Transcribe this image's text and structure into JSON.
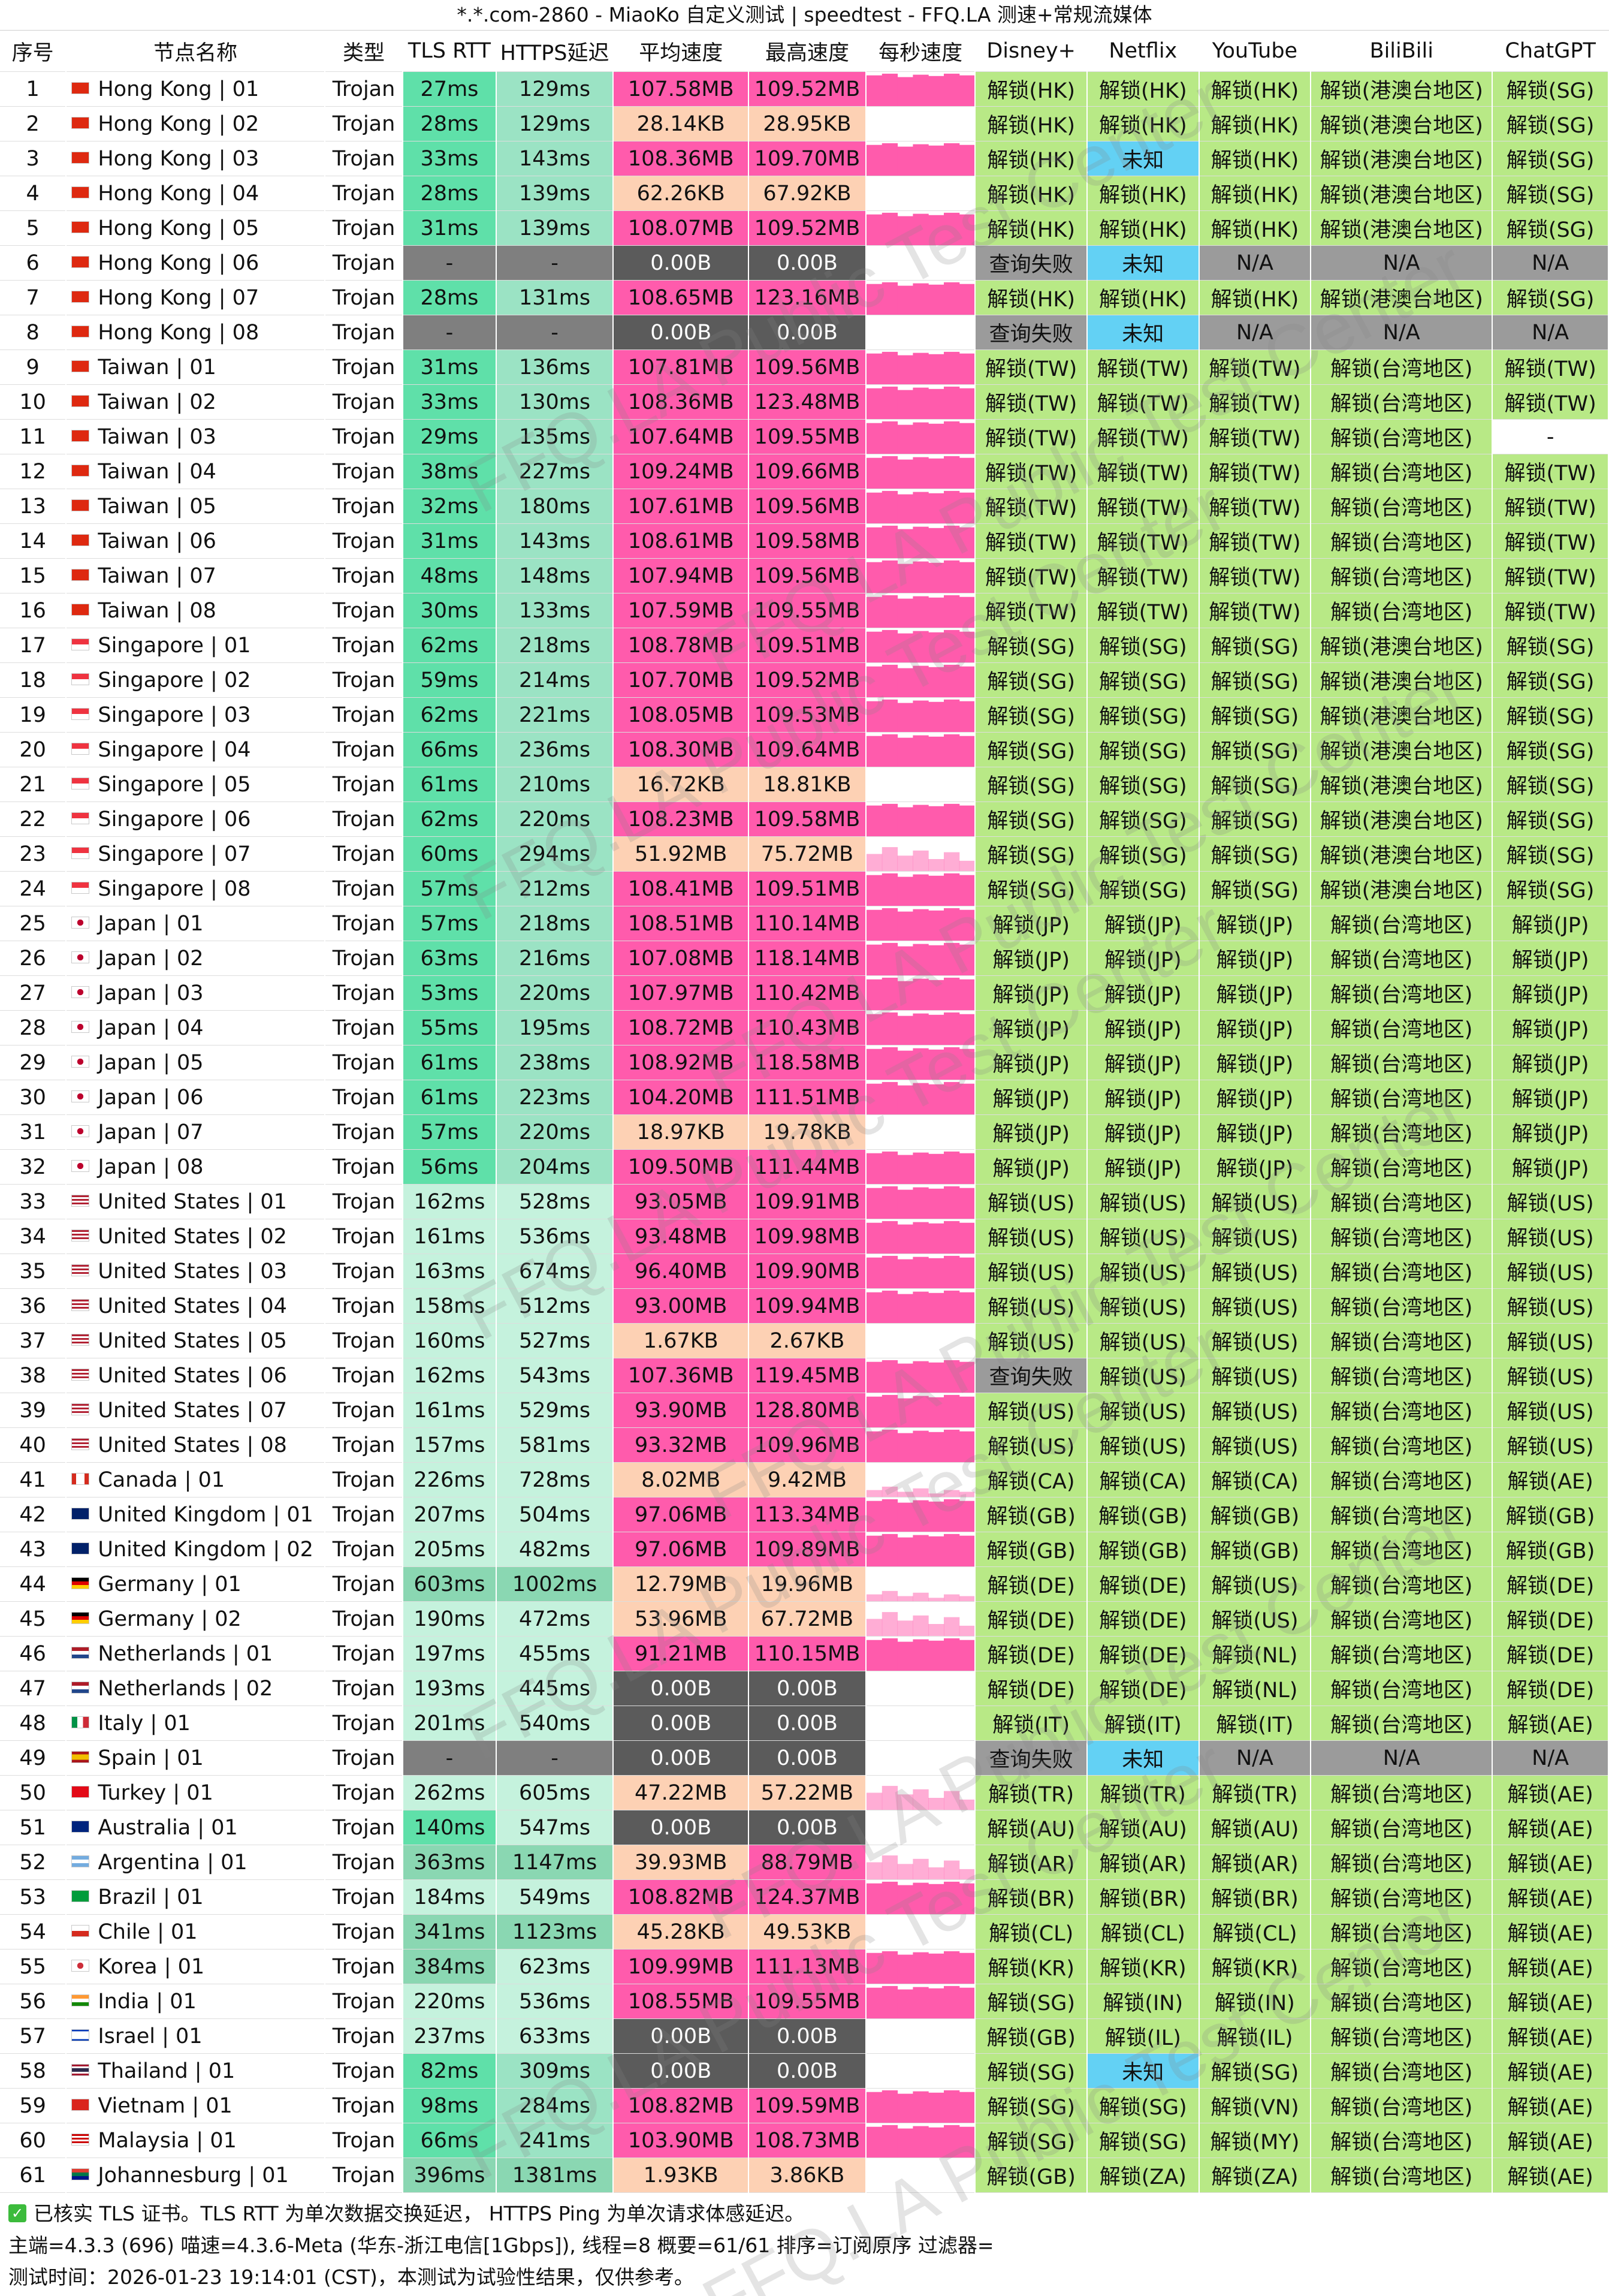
{
  "title": "*.*.com-2860 - MiaoKo 自定义测试 | speedtest - FFQ.LA 测速+常规流媒体",
  "columns": [
    "序号",
    "节点名称",
    "类型",
    "TLS RTT",
    "HTTPS延迟",
    "平均速度",
    "最高速度",
    "每秒速度",
    "Disney+",
    "Netflix",
    "YouTube",
    "BiliBili",
    "ChatGPT"
  ],
  "watermark": "FFQ.LA Public Test Center",
  "rows": [
    [
      "1",
      "hk",
      "Hong Kong | 01",
      "Trojan",
      "27ms",
      "129ms",
      "107.58MB",
      "109.52MB",
      "hi",
      "解锁(HK)",
      "解锁(HK)",
      "解锁(HK)",
      "解锁(港澳台地区)",
      "解锁(SG)"
    ],
    [
      "2",
      "hk",
      "Hong Kong | 02",
      "Trojan",
      "28ms",
      "129ms",
      "28.14KB",
      "28.95KB",
      "none",
      "解锁(HK)",
      "解锁(HK)",
      "解锁(HK)",
      "解锁(港澳台地区)",
      "解锁(SG)"
    ],
    [
      "3",
      "hk",
      "Hong Kong | 03",
      "Trojan",
      "33ms",
      "143ms",
      "108.36MB",
      "109.70MB",
      "hi",
      "解锁(HK)",
      "未知",
      "解锁(HK)",
      "解锁(港澳台地区)",
      "解锁(SG)"
    ],
    [
      "4",
      "hk",
      "Hong Kong | 04",
      "Trojan",
      "28ms",
      "139ms",
      "62.26KB",
      "67.92KB",
      "none",
      "解锁(HK)",
      "解锁(HK)",
      "解锁(HK)",
      "解锁(港澳台地区)",
      "解锁(SG)"
    ],
    [
      "5",
      "hk",
      "Hong Kong | 05",
      "Trojan",
      "31ms",
      "139ms",
      "108.07MB",
      "109.52MB",
      "hi",
      "解锁(HK)",
      "解锁(HK)",
      "解锁(HK)",
      "解锁(港澳台地区)",
      "解锁(SG)"
    ],
    [
      "6",
      "hk",
      "Hong Kong | 06",
      "Trojan",
      "-",
      "-",
      "0.00B",
      "0.00B",
      "none",
      "查询失败",
      "未知",
      "N/A",
      "N/A",
      "N/A"
    ],
    [
      "7",
      "hk",
      "Hong Kong | 07",
      "Trojan",
      "28ms",
      "131ms",
      "108.65MB",
      "123.16MB",
      "hi",
      "解锁(HK)",
      "解锁(HK)",
      "解锁(HK)",
      "解锁(港澳台地区)",
      "解锁(SG)"
    ],
    [
      "8",
      "hk",
      "Hong Kong | 08",
      "Trojan",
      "-",
      "-",
      "0.00B",
      "0.00B",
      "none",
      "查询失败",
      "未知",
      "N/A",
      "N/A",
      "N/A"
    ],
    [
      "9",
      "cn",
      "Taiwan | 01",
      "Trojan",
      "31ms",
      "136ms",
      "107.81MB",
      "109.56MB",
      "hi",
      "解锁(TW)",
      "解锁(TW)",
      "解锁(TW)",
      "解锁(台湾地区)",
      "解锁(TW)"
    ],
    [
      "10",
      "cn",
      "Taiwan | 02",
      "Trojan",
      "33ms",
      "130ms",
      "108.36MB",
      "123.48MB",
      "hi",
      "解锁(TW)",
      "解锁(TW)",
      "解锁(TW)",
      "解锁(台湾地区)",
      "解锁(TW)"
    ],
    [
      "11",
      "cn",
      "Taiwan | 03",
      "Trojan",
      "29ms",
      "135ms",
      "107.64MB",
      "109.55MB",
      "hi",
      "解锁(TW)",
      "解锁(TW)",
      "解锁(TW)",
      "解锁(台湾地区)",
      "-"
    ],
    [
      "12",
      "cn",
      "Taiwan | 04",
      "Trojan",
      "38ms",
      "227ms",
      "109.24MB",
      "109.66MB",
      "hi",
      "解锁(TW)",
      "解锁(TW)",
      "解锁(TW)",
      "解锁(台湾地区)",
      "解锁(TW)"
    ],
    [
      "13",
      "cn",
      "Taiwan | 05",
      "Trojan",
      "32ms",
      "180ms",
      "107.61MB",
      "109.56MB",
      "hi",
      "解锁(TW)",
      "解锁(TW)",
      "解锁(TW)",
      "解锁(台湾地区)",
      "解锁(TW)"
    ],
    [
      "14",
      "cn",
      "Taiwan | 06",
      "Trojan",
      "31ms",
      "143ms",
      "108.61MB",
      "109.58MB",
      "hi",
      "解锁(TW)",
      "解锁(TW)",
      "解锁(TW)",
      "解锁(台湾地区)",
      "解锁(TW)"
    ],
    [
      "15",
      "cn",
      "Taiwan | 07",
      "Trojan",
      "48ms",
      "148ms",
      "107.94MB",
      "109.56MB",
      "hi",
      "解锁(TW)",
      "解锁(TW)",
      "解锁(TW)",
      "解锁(台湾地区)",
      "解锁(TW)"
    ],
    [
      "16",
      "cn",
      "Taiwan | 08",
      "Trojan",
      "30ms",
      "133ms",
      "107.59MB",
      "109.55MB",
      "hi",
      "解锁(TW)",
      "解锁(TW)",
      "解锁(TW)",
      "解锁(台湾地区)",
      "解锁(TW)"
    ],
    [
      "17",
      "sg",
      "Singapore | 01",
      "Trojan",
      "62ms",
      "218ms",
      "108.78MB",
      "109.51MB",
      "hi",
      "解锁(SG)",
      "解锁(SG)",
      "解锁(SG)",
      "解锁(港澳台地区)",
      "解锁(SG)"
    ],
    [
      "18",
      "sg",
      "Singapore | 02",
      "Trojan",
      "59ms",
      "214ms",
      "107.70MB",
      "109.52MB",
      "hi",
      "解锁(SG)",
      "解锁(SG)",
      "解锁(SG)",
      "解锁(港澳台地区)",
      "解锁(SG)"
    ],
    [
      "19",
      "sg",
      "Singapore | 03",
      "Trojan",
      "62ms",
      "221ms",
      "108.05MB",
      "109.53MB",
      "hi",
      "解锁(SG)",
      "解锁(SG)",
      "解锁(SG)",
      "解锁(港澳台地区)",
      "解锁(SG)"
    ],
    [
      "20",
      "sg",
      "Singapore | 04",
      "Trojan",
      "66ms",
      "236ms",
      "108.30MB",
      "109.64MB",
      "hi",
      "解锁(SG)",
      "解锁(SG)",
      "解锁(SG)",
      "解锁(港澳台地区)",
      "解锁(SG)"
    ],
    [
      "21",
      "sg",
      "Singapore | 05",
      "Trojan",
      "61ms",
      "210ms",
      "16.72KB",
      "18.81KB",
      "none",
      "解锁(SG)",
      "解锁(SG)",
      "解锁(SG)",
      "解锁(港澳台地区)",
      "解锁(SG)"
    ],
    [
      "22",
      "sg",
      "Singapore | 06",
      "Trojan",
      "62ms",
      "220ms",
      "108.23MB",
      "109.58MB",
      "hi",
      "解锁(SG)",
      "解锁(SG)",
      "解锁(SG)",
      "解锁(港澳台地区)",
      "解锁(SG)"
    ],
    [
      "23",
      "sg",
      "Singapore | 07",
      "Trojan",
      "60ms",
      "294ms",
      "51.92MB",
      "75.72MB",
      "mid",
      "解锁(SG)",
      "解锁(SG)",
      "解锁(SG)",
      "解锁(港澳台地区)",
      "解锁(SG)"
    ],
    [
      "24",
      "sg",
      "Singapore | 08",
      "Trojan",
      "57ms",
      "212ms",
      "108.41MB",
      "109.51MB",
      "hi",
      "解锁(SG)",
      "解锁(SG)",
      "解锁(SG)",
      "解锁(港澳台地区)",
      "解锁(SG)"
    ],
    [
      "25",
      "jp",
      "Japan | 01",
      "Trojan",
      "57ms",
      "218ms",
      "108.51MB",
      "110.14MB",
      "hi",
      "解锁(JP)",
      "解锁(JP)",
      "解锁(JP)",
      "解锁(台湾地区)",
      "解锁(JP)"
    ],
    [
      "26",
      "jp",
      "Japan | 02",
      "Trojan",
      "63ms",
      "216ms",
      "107.08MB",
      "118.14MB",
      "hi",
      "解锁(JP)",
      "解锁(JP)",
      "解锁(JP)",
      "解锁(台湾地区)",
      "解锁(JP)"
    ],
    [
      "27",
      "jp",
      "Japan | 03",
      "Trojan",
      "53ms",
      "220ms",
      "107.97MB",
      "110.42MB",
      "hi",
      "解锁(JP)",
      "解锁(JP)",
      "解锁(JP)",
      "解锁(台湾地区)",
      "解锁(JP)"
    ],
    [
      "28",
      "jp",
      "Japan | 04",
      "Trojan",
      "55ms",
      "195ms",
      "108.72MB",
      "110.43MB",
      "hi",
      "解锁(JP)",
      "解锁(JP)",
      "解锁(JP)",
      "解锁(台湾地区)",
      "解锁(JP)"
    ],
    [
      "29",
      "jp",
      "Japan | 05",
      "Trojan",
      "61ms",
      "238ms",
      "108.92MB",
      "118.58MB",
      "hi",
      "解锁(JP)",
      "解锁(JP)",
      "解锁(JP)",
      "解锁(台湾地区)",
      "解锁(JP)"
    ],
    [
      "30",
      "jp",
      "Japan | 06",
      "Trojan",
      "61ms",
      "223ms",
      "104.20MB",
      "111.51MB",
      "hi",
      "解锁(JP)",
      "解锁(JP)",
      "解锁(JP)",
      "解锁(台湾地区)",
      "解锁(JP)"
    ],
    [
      "31",
      "jp",
      "Japan | 07",
      "Trojan",
      "57ms",
      "220ms",
      "18.97KB",
      "19.78KB",
      "none",
      "解锁(JP)",
      "解锁(JP)",
      "解锁(JP)",
      "解锁(台湾地区)",
      "解锁(JP)"
    ],
    [
      "32",
      "jp",
      "Japan | 08",
      "Trojan",
      "56ms",
      "204ms",
      "109.50MB",
      "111.44MB",
      "hi",
      "解锁(JP)",
      "解锁(JP)",
      "解锁(JP)",
      "解锁(台湾地区)",
      "解锁(JP)"
    ],
    [
      "33",
      "us",
      "United States | 01",
      "Trojan",
      "162ms",
      "528ms",
      "93.05MB",
      "109.91MB",
      "hi",
      "解锁(US)",
      "解锁(US)",
      "解锁(US)",
      "解锁(台湾地区)",
      "解锁(US)"
    ],
    [
      "34",
      "us",
      "United States | 02",
      "Trojan",
      "161ms",
      "536ms",
      "93.48MB",
      "109.98MB",
      "hi",
      "解锁(US)",
      "解锁(US)",
      "解锁(US)",
      "解锁(台湾地区)",
      "解锁(US)"
    ],
    [
      "35",
      "us",
      "United States | 03",
      "Trojan",
      "163ms",
      "674ms",
      "96.40MB",
      "109.90MB",
      "hi",
      "解锁(US)",
      "解锁(US)",
      "解锁(US)",
      "解锁(台湾地区)",
      "解锁(US)"
    ],
    [
      "36",
      "us",
      "United States | 04",
      "Trojan",
      "158ms",
      "512ms",
      "93.00MB",
      "109.94MB",
      "hi",
      "解锁(US)",
      "解锁(US)",
      "解锁(US)",
      "解锁(台湾地区)",
      "解锁(US)"
    ],
    [
      "37",
      "us",
      "United States | 05",
      "Trojan",
      "160ms",
      "527ms",
      "1.67KB",
      "2.67KB",
      "none",
      "解锁(US)",
      "解锁(US)",
      "解锁(US)",
      "解锁(台湾地区)",
      "解锁(US)"
    ],
    [
      "38",
      "us",
      "United States | 06",
      "Trojan",
      "162ms",
      "543ms",
      "107.36MB",
      "119.45MB",
      "hi",
      "查询失败",
      "解锁(US)",
      "解锁(US)",
      "解锁(台湾地区)",
      "解锁(US)"
    ],
    [
      "39",
      "us",
      "United States | 07",
      "Trojan",
      "161ms",
      "529ms",
      "93.90MB",
      "128.80MB",
      "hi",
      "解锁(US)",
      "解锁(US)",
      "解锁(US)",
      "解锁(台湾地区)",
      "解锁(US)"
    ],
    [
      "40",
      "us",
      "United States | 08",
      "Trojan",
      "157ms",
      "581ms",
      "93.32MB",
      "109.96MB",
      "hi",
      "解锁(US)",
      "解锁(US)",
      "解锁(US)",
      "解锁(台湾地区)",
      "解锁(US)"
    ],
    [
      "41",
      "ca",
      "Canada | 01",
      "Trojan",
      "226ms",
      "728ms",
      "8.02MB",
      "9.42MB",
      "lo",
      "解锁(CA)",
      "解锁(CA)",
      "解锁(CA)",
      "解锁(台湾地区)",
      "解锁(AE)"
    ],
    [
      "42",
      "gb",
      "United Kingdom | 01",
      "Trojan",
      "207ms",
      "504ms",
      "97.06MB",
      "113.34MB",
      "hi",
      "解锁(GB)",
      "解锁(GB)",
      "解锁(GB)",
      "解锁(台湾地区)",
      "解锁(GB)"
    ],
    [
      "43",
      "gb",
      "United Kingdom | 02",
      "Trojan",
      "205ms",
      "482ms",
      "97.06MB",
      "109.89MB",
      "hi",
      "解锁(GB)",
      "解锁(GB)",
      "解锁(GB)",
      "解锁(台湾地区)",
      "解锁(GB)"
    ],
    [
      "44",
      "de",
      "Germany | 01",
      "Trojan",
      "603ms",
      "1002ms",
      "12.79MB",
      "19.96MB",
      "lo",
      "解锁(DE)",
      "解锁(DE)",
      "解锁(US)",
      "解锁(台湾地区)",
      "解锁(DE)"
    ],
    [
      "45",
      "de",
      "Germany | 02",
      "Trojan",
      "190ms",
      "472ms",
      "53.96MB",
      "67.72MB",
      "mid",
      "解锁(DE)",
      "解锁(DE)",
      "解锁(US)",
      "解锁(台湾地区)",
      "解锁(DE)"
    ],
    [
      "46",
      "nl",
      "Netherlands | 01",
      "Trojan",
      "197ms",
      "455ms",
      "91.21MB",
      "110.15MB",
      "hi",
      "解锁(DE)",
      "解锁(DE)",
      "解锁(NL)",
      "解锁(台湾地区)",
      "解锁(DE)"
    ],
    [
      "47",
      "nl",
      "Netherlands | 02",
      "Trojan",
      "193ms",
      "445ms",
      "0.00B",
      "0.00B",
      "none",
      "解锁(DE)",
      "解锁(DE)",
      "解锁(NL)",
      "解锁(台湾地区)",
      "解锁(DE)"
    ],
    [
      "48",
      "it",
      "Italy | 01",
      "Trojan",
      "201ms",
      "540ms",
      "0.00B",
      "0.00B",
      "none",
      "解锁(IT)",
      "解锁(IT)",
      "解锁(IT)",
      "解锁(台湾地区)",
      "解锁(AE)"
    ],
    [
      "49",
      "es",
      "Spain | 01",
      "Trojan",
      "-",
      "-",
      "0.00B",
      "0.00B",
      "none",
      "查询失败",
      "未知",
      "N/A",
      "N/A",
      "N/A"
    ],
    [
      "50",
      "tr",
      "Turkey | 01",
      "Trojan",
      "262ms",
      "605ms",
      "47.22MB",
      "57.22MB",
      "mid",
      "解锁(TR)",
      "解锁(TR)",
      "解锁(TR)",
      "解锁(台湾地区)",
      "解锁(AE)"
    ],
    [
      "51",
      "au",
      "Australia | 01",
      "Trojan",
      "140ms",
      "547ms",
      "0.00B",
      "0.00B",
      "none",
      "解锁(AU)",
      "解锁(AU)",
      "解锁(AU)",
      "解锁(台湾地区)",
      "解锁(AE)"
    ],
    [
      "52",
      "ar",
      "Argentina | 01",
      "Trojan",
      "363ms",
      "1147ms",
      "39.93MB",
      "88.79MB",
      "mid",
      "解锁(AR)",
      "解锁(AR)",
      "解锁(AR)",
      "解锁(台湾地区)",
      "解锁(AE)"
    ],
    [
      "53",
      "br",
      "Brazil | 01",
      "Trojan",
      "184ms",
      "549ms",
      "108.82MB",
      "124.37MB",
      "hi",
      "解锁(BR)",
      "解锁(BR)",
      "解锁(BR)",
      "解锁(台湾地区)",
      "解锁(AE)"
    ],
    [
      "54",
      "cl",
      "Chile | 01",
      "Trojan",
      "341ms",
      "1123ms",
      "45.28KB",
      "49.53KB",
      "none",
      "解锁(CL)",
      "解锁(CL)",
      "解锁(CL)",
      "解锁(台湾地区)",
      "解锁(AE)"
    ],
    [
      "55",
      "kr",
      "Korea | 01",
      "Trojan",
      "384ms",
      "623ms",
      "109.99MB",
      "111.13MB",
      "hi",
      "解锁(KR)",
      "解锁(KR)",
      "解锁(KR)",
      "解锁(台湾地区)",
      "解锁(AE)"
    ],
    [
      "56",
      "in",
      "India | 01",
      "Trojan",
      "220ms",
      "536ms",
      "108.55MB",
      "109.55MB",
      "hi",
      "解锁(SG)",
      "解锁(IN)",
      "解锁(IN)",
      "解锁(台湾地区)",
      "解锁(AE)"
    ],
    [
      "57",
      "il",
      "Israel | 01",
      "Trojan",
      "237ms",
      "633ms",
      "0.00B",
      "0.00B",
      "none",
      "解锁(GB)",
      "解锁(IL)",
      "解锁(IL)",
      "解锁(台湾地区)",
      "解锁(AE)"
    ],
    [
      "58",
      "th",
      "Thailand | 01",
      "Trojan",
      "82ms",
      "309ms",
      "0.00B",
      "0.00B",
      "none",
      "解锁(SG)",
      "未知",
      "解锁(SG)",
      "解锁(台湾地区)",
      "解锁(AE)"
    ],
    [
      "59",
      "vn",
      "Vietnam | 01",
      "Trojan",
      "98ms",
      "284ms",
      "108.82MB",
      "109.59MB",
      "hi",
      "解锁(SG)",
      "解锁(SG)",
      "解锁(VN)",
      "解锁(台湾地区)",
      "解锁(AE)"
    ],
    [
      "60",
      "my",
      "Malaysia | 01",
      "Trojan",
      "66ms",
      "241ms",
      "103.90MB",
      "108.73MB",
      "hi",
      "解锁(SG)",
      "解锁(SG)",
      "解锁(MY)",
      "解锁(台湾地区)",
      "解锁(AE)"
    ],
    [
      "61",
      "za",
      "Johannesburg | 01",
      "Trojan",
      "396ms",
      "1381ms",
      "1.93KB",
      "3.86KB",
      "none",
      "解锁(GB)",
      "解锁(ZA)",
      "解锁(ZA)",
      "解锁(台湾地区)",
      "解锁(AE)"
    ]
  ],
  "footer": {
    "note": "已核实 TLS 证书。TLS RTT 为单次数据交换延迟， HTTPS Ping 为单次请求体感延迟。",
    "info": "主端=4.3.3 (696) 喵速=4.3.6-Meta (华东-浙江电信[1Gbps]), 线程=8 概要=61/61 排序=订阅原序 过滤器=",
    "time": "测试时间：2026-01-23 19:14:01 (CST)，本测试为试验性结果，仅供参考。"
  },
  "colors": {
    "accent_pink": "#ff5bac",
    "peach": "#fdd1b4",
    "unlock_green": "#b8e986",
    "unknown_cyan": "#63d1f4",
    "fail_grey": "#9b9b9b",
    "zero_grey": "#5b5b5b"
  }
}
